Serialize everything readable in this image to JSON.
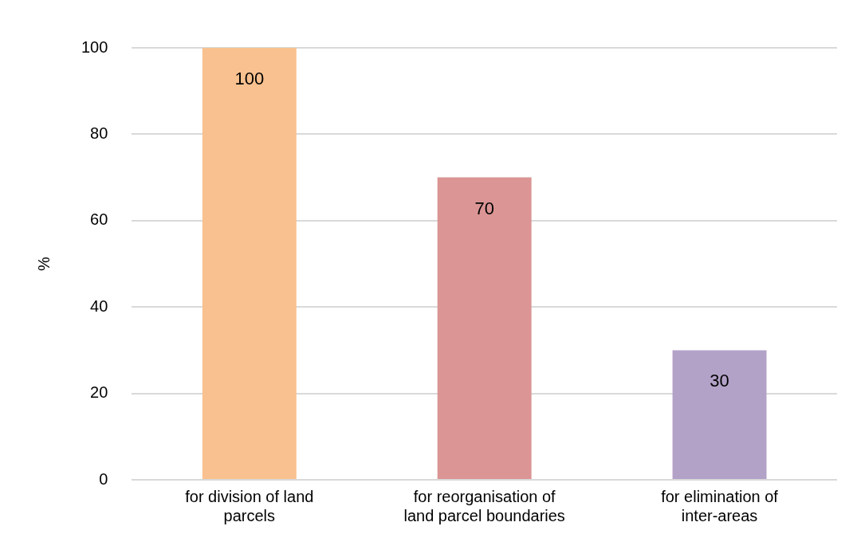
{
  "chart_data": {
    "type": "bar",
    "ylabel": "%",
    "categories": [
      "for division of land parcels",
      "for reorganisation of land parcel boundaries",
      "for elimination of inter-areas"
    ],
    "values": [
      100,
      70,
      30
    ],
    "colors": [
      "#f9c18f",
      "#da9594",
      "#b3a2c8"
    ],
    "ylim": [
      0,
      100
    ],
    "yticks": [
      0,
      20,
      40,
      60,
      80,
      100
    ],
    "grid": "y",
    "data_labels": true,
    "legend": false
  }
}
